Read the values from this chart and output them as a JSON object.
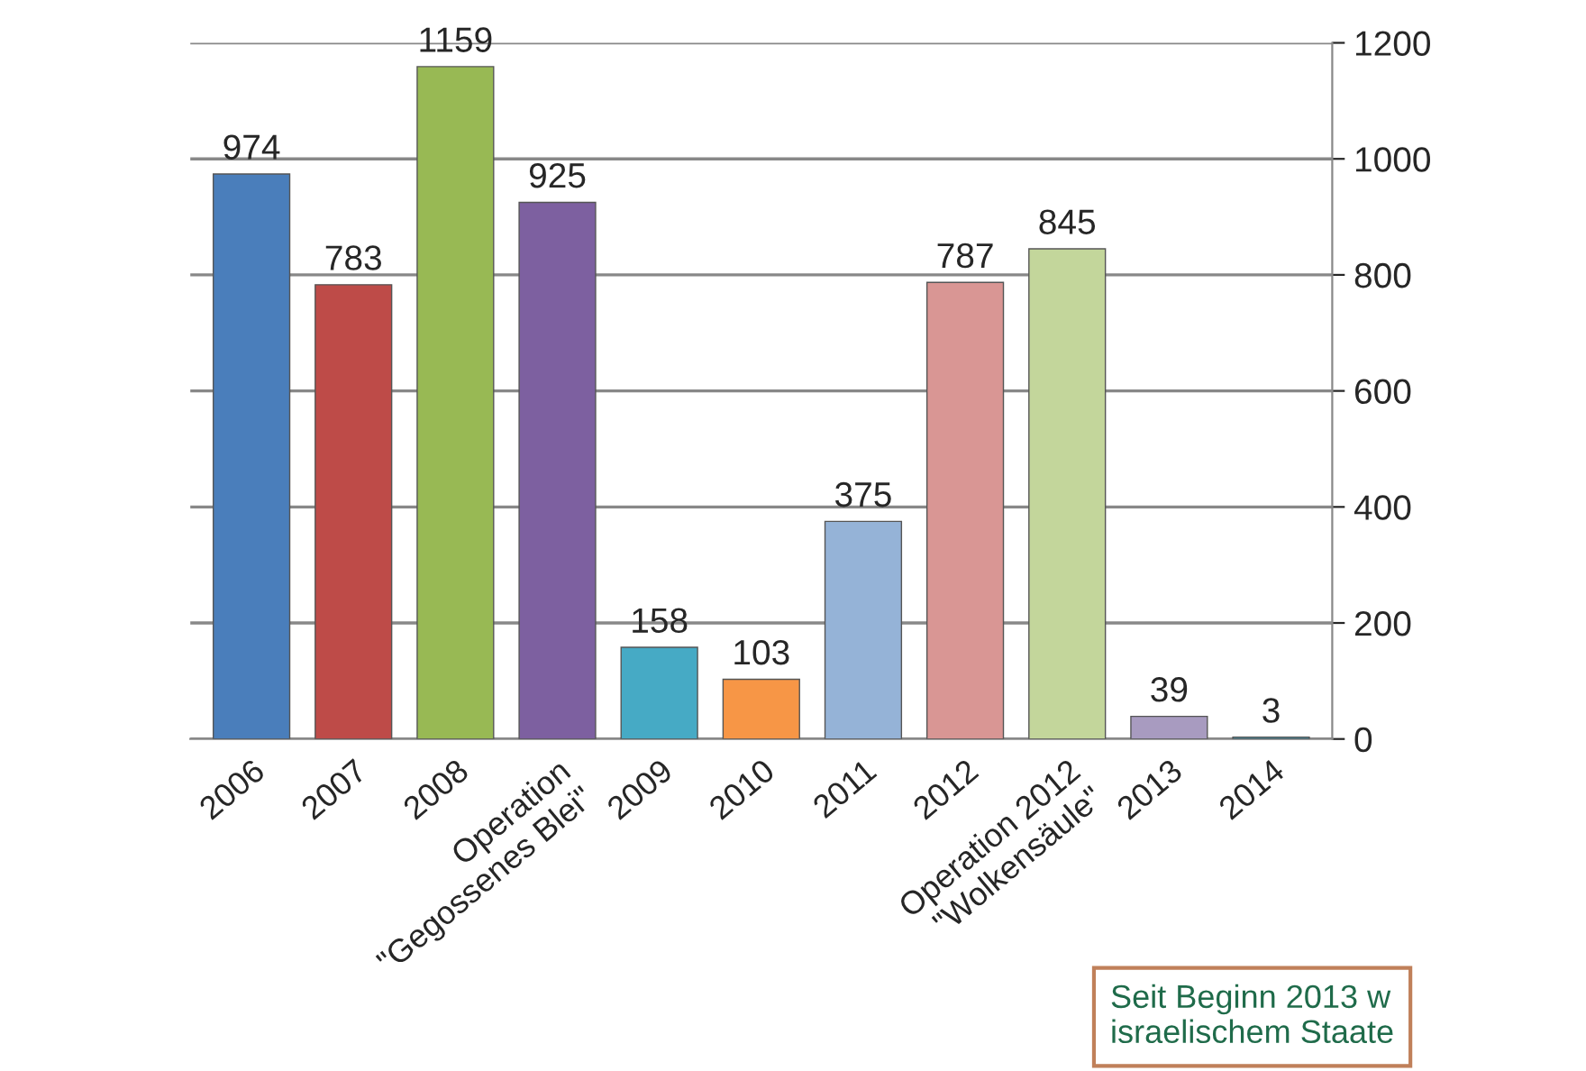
{
  "chart_data": {
    "type": "bar",
    "categories": [
      "2006",
      "2007",
      "2008",
      "Operation\n\"Gegossenes Blei\"",
      "2009",
      "2010",
      "2011",
      "2012",
      "Operation 2012\n\"Wolkensäule\"",
      "2013",
      "2014"
    ],
    "values": [
      974,
      783,
      1159,
      925,
      158,
      103,
      375,
      787,
      845,
      39,
      3
    ],
    "colors": [
      "#4a7ebb",
      "#be4b48",
      "#98b954",
      "#7d60a0",
      "#46aac5",
      "#f79646",
      "#95b3d7",
      "#d99694",
      "#c3d69b",
      "#a89bc0",
      "#4bacc6"
    ],
    "ylim": [
      0,
      1200
    ],
    "yticks": [
      0,
      200,
      400,
      600,
      800,
      1000,
      1200
    ],
    "grid": "y",
    "data_labels": true,
    "annotations": [
      "Seit Beginn 2013 w\nisraelischem Staate"
    ]
  }
}
